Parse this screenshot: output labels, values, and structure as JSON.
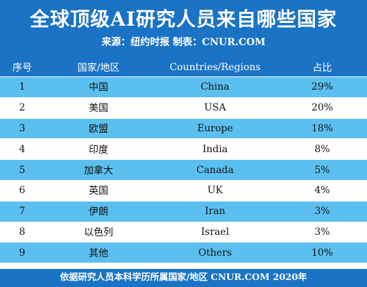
{
  "header": {
    "title": "全球顶级AI研究人员来自哪些国家",
    "source": "来源：纽约时报  制表：CNUR.COM"
  },
  "table": {
    "columns": [
      "序号",
      "国家/地区",
      "Countries/Regions",
      "占比"
    ],
    "rows": [
      {
        "no": "1",
        "cn": "中国",
        "en": "China",
        "share": "29%"
      },
      {
        "no": "2",
        "cn": "美国",
        "en": "USA",
        "share": "20%"
      },
      {
        "no": "3",
        "cn": "欧盟",
        "en": "Europe",
        "share": "18%"
      },
      {
        "no": "4",
        "cn": "印度",
        "en": "India",
        "share": "8%"
      },
      {
        "no": "5",
        "cn": "加拿大",
        "en": "Canada",
        "share": "5%"
      },
      {
        "no": "6",
        "cn": "英国",
        "en": "UK",
        "share": "4%"
      },
      {
        "no": "7",
        "cn": "伊朗",
        "en": "Iran",
        "share": "3%"
      },
      {
        "no": "8",
        "cn": "以色列",
        "en": "Israel",
        "share": "3%"
      },
      {
        "no": "9",
        "cn": "其他",
        "en": "Others",
        "share": "10%"
      }
    ]
  },
  "footer": {
    "text": "依据研究人员本科学历所属国家/地区  CNUR.COM 2020年"
  },
  "colors": {
    "header_bg": "#1a73c5",
    "stripe": "#5bc0f0"
  }
}
